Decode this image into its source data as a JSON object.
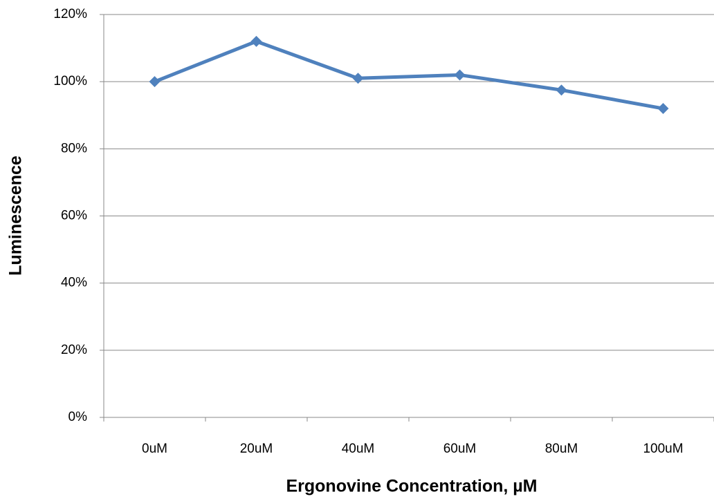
{
  "chart_data": {
    "type": "line",
    "categories": [
      "0uM",
      "20uM",
      "40uM",
      "60uM",
      "80uM",
      "100uM"
    ],
    "series": [
      {
        "name": "Luminescence",
        "color": "#4f81bd",
        "values": [
          100,
          112,
          101,
          102,
          97.5,
          92
        ]
      }
    ],
    "xlabel": "Ergonovine Concentration, µM",
    "ylabel": "Luminescence",
    "ylim": [
      0,
      120
    ],
    "yticks": [
      {
        "value": 0,
        "label": "0%"
      },
      {
        "value": 20,
        "label": "20%"
      },
      {
        "value": 40,
        "label": "40%"
      },
      {
        "value": 60,
        "label": "60%"
      },
      {
        "value": 80,
        "label": "80%"
      },
      {
        "value": 100,
        "label": "100%"
      },
      {
        "value": 120,
        "label": "120%"
      }
    ],
    "grid": true
  }
}
